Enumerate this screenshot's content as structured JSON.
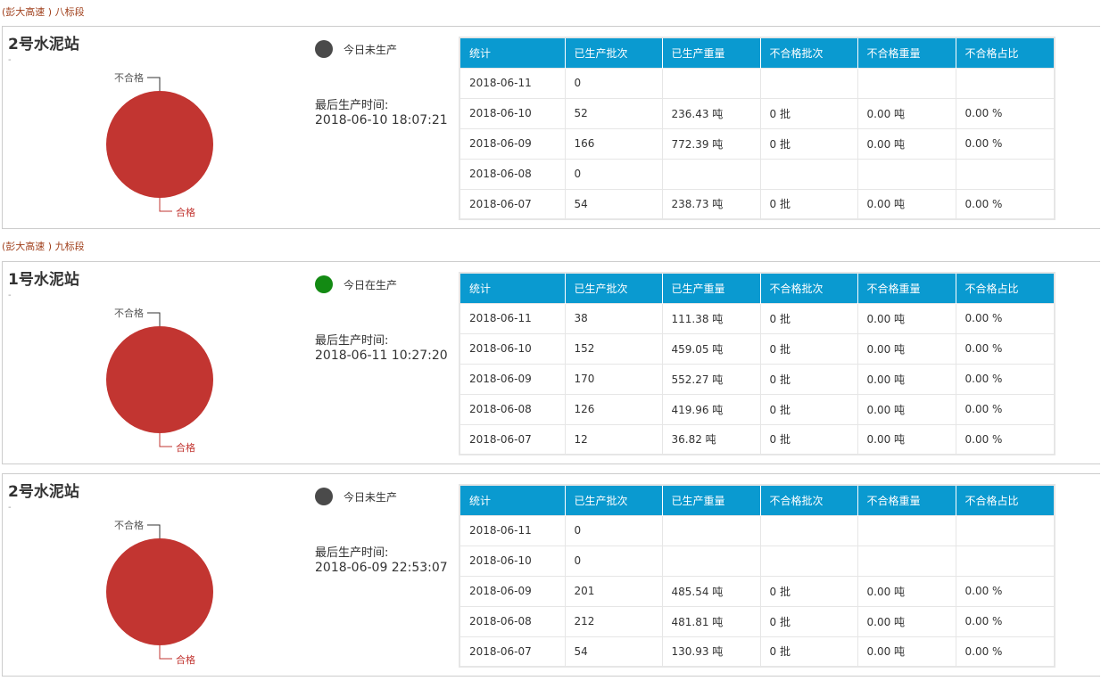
{
  "colors": {
    "header_bg": "#0a9ad0",
    "pie_fill": "#c23531",
    "idle_dot": "#4a4a4a",
    "active_dot": "#138a13",
    "section_text": "#a0401c"
  },
  "columns": [
    "统计",
    "已生产批次",
    "已生产重量",
    "不合格批次",
    "不合格重量",
    "不合格占比"
  ],
  "panels": [
    {
      "section": "(彭大高速 ) 八标段",
      "title": "2号水泥站",
      "subtitle": "-",
      "status": "今日未生产",
      "status_state": "idle",
      "last_label": "最后生产时间:",
      "last_time": "2018-06-10 18:07:21",
      "pie": {
        "labels": [
          "不合格",
          "合格"
        ],
        "values": [
          0,
          100
        ]
      },
      "rows": [
        [
          "2018-06-11",
          "0",
          "",
          "",
          "",
          ""
        ],
        [
          "2018-06-10",
          "52",
          "236.43 吨",
          "0 批",
          "0.00 吨",
          "0.00 %"
        ],
        [
          "2018-06-09",
          "166",
          "772.39 吨",
          "0 批",
          "0.00 吨",
          "0.00 %"
        ],
        [
          "2018-06-08",
          "0",
          "",
          "",
          "",
          ""
        ],
        [
          "2018-06-07",
          "54",
          "238.73 吨",
          "0 批",
          "0.00 吨",
          "0.00 %"
        ]
      ]
    },
    {
      "section": "(彭大高速 ) 九标段",
      "title": "1号水泥站",
      "subtitle": "-",
      "status": "今日在生产",
      "status_state": "active",
      "last_label": "最后生产时间:",
      "last_time": "2018-06-11 10:27:20",
      "pie": {
        "labels": [
          "不合格",
          "合格"
        ],
        "values": [
          0,
          100
        ]
      },
      "rows": [
        [
          "2018-06-11",
          "38",
          "111.38 吨",
          "0 批",
          "0.00 吨",
          "0.00 %"
        ],
        [
          "2018-06-10",
          "152",
          "459.05 吨",
          "0 批",
          "0.00 吨",
          "0.00 %"
        ],
        [
          "2018-06-09",
          "170",
          "552.27 吨",
          "0 批",
          "0.00 吨",
          "0.00 %"
        ],
        [
          "2018-06-08",
          "126",
          "419.96 吨",
          "0 批",
          "0.00 吨",
          "0.00 %"
        ],
        [
          "2018-06-07",
          "12",
          "36.82 吨",
          "0 批",
          "0.00 吨",
          "0.00 %"
        ]
      ]
    },
    {
      "section": "",
      "title": "2号水泥站",
      "subtitle": "-",
      "status": "今日未生产",
      "status_state": "idle",
      "last_label": "最后生产时间:",
      "last_time": "2018-06-09 22:53:07",
      "pie": {
        "labels": [
          "不合格",
          "合格"
        ],
        "values": [
          0,
          100
        ]
      },
      "rows": [
        [
          "2018-06-11",
          "0",
          "",
          "",
          "",
          ""
        ],
        [
          "2018-06-10",
          "0",
          "",
          "",
          "",
          ""
        ],
        [
          "2018-06-09",
          "201",
          "485.54 吨",
          "0 批",
          "0.00 吨",
          "0.00 %"
        ],
        [
          "2018-06-08",
          "212",
          "481.81 吨",
          "0 批",
          "0.00 吨",
          "0.00 %"
        ],
        [
          "2018-06-07",
          "54",
          "130.93 吨",
          "0 批",
          "0.00 吨",
          "0.00 %"
        ]
      ]
    }
  ]
}
